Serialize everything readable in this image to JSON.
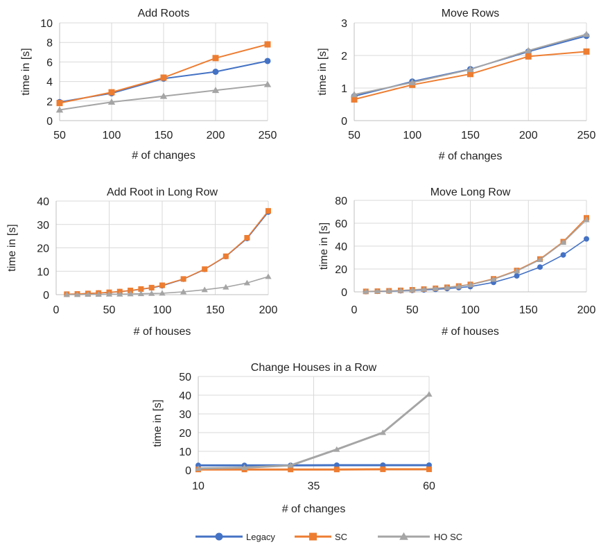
{
  "colors": {
    "legacy": "#4472C4",
    "sc": "#ED7D31",
    "ho_sc": "#A5A5A5",
    "grid": "#D9D9D9",
    "axis": "#BFBFBF"
  },
  "legend": {
    "placement": "bottom-center",
    "entries": [
      "Legacy",
      "SC",
      "HO SC"
    ]
  },
  "chart_data": [
    {
      "type": "line",
      "title": "Add Roots",
      "xlabel": "# of changes",
      "ylabel": "time in [s]",
      "xlim": [
        50,
        250
      ],
      "ylim": [
        0,
        10
      ],
      "xticks": [
        50,
        100,
        150,
        200,
        250
      ],
      "yticks": [
        0,
        2,
        4,
        6,
        8,
        10
      ],
      "grid": true,
      "series": [
        {
          "name": "Legacy",
          "x": [
            50,
            100,
            150,
            200,
            250
          ],
          "y": [
            1.9,
            2.8,
            4.3,
            5.0,
            6.1
          ]
        },
        {
          "name": "SC",
          "x": [
            50,
            100,
            150,
            200,
            250
          ],
          "y": [
            1.8,
            2.9,
            4.4,
            6.4,
            7.8
          ]
        },
        {
          "name": "HO SC",
          "x": [
            50,
            100,
            150,
            200,
            250
          ],
          "y": [
            1.1,
            1.9,
            2.5,
            3.1,
            3.7
          ]
        }
      ]
    },
    {
      "type": "line",
      "title": "Move Rows",
      "xlabel": "# of changes",
      "ylabel": "time in [s]",
      "xlim": [
        50,
        250
      ],
      "ylim": [
        0,
        3
      ],
      "xticks": [
        50,
        100,
        150,
        200,
        250
      ],
      "yticks": [
        0,
        1,
        2,
        3
      ],
      "grid": true,
      "series": [
        {
          "name": "Legacy",
          "x": [
            50,
            100,
            150,
            200,
            250
          ],
          "y": [
            0.75,
            1.2,
            1.58,
            2.12,
            2.6
          ]
        },
        {
          "name": "SC",
          "x": [
            50,
            100,
            150,
            200,
            250
          ],
          "y": [
            0.65,
            1.1,
            1.43,
            1.97,
            2.12
          ]
        },
        {
          "name": "HO SC",
          "x": [
            50,
            100,
            150,
            200,
            250
          ],
          "y": [
            0.8,
            1.17,
            1.57,
            2.15,
            2.65
          ]
        }
      ]
    },
    {
      "type": "line",
      "title": "Add Root in Long Row",
      "xlabel": "# of houses",
      "ylabel": "time in [s]",
      "xlim": [
        0,
        200
      ],
      "ylim": [
        0,
        40
      ],
      "xticks": [
        0,
        50,
        100,
        150,
        200
      ],
      "yticks": [
        0,
        10,
        20,
        30,
        40
      ],
      "grid": true,
      "series": [
        {
          "name": "Legacy",
          "x": [
            10,
            20,
            30,
            40,
            50,
            60,
            70,
            80,
            90,
            100,
            120,
            140,
            160,
            180,
            200
          ],
          "y": [
            0.2,
            0.3,
            0.5,
            0.7,
            0.9,
            1.3,
            1.7,
            2.3,
            2.9,
            3.8,
            6.6,
            10.8,
            16.3,
            24.0,
            35.3
          ]
        },
        {
          "name": "SC",
          "x": [
            10,
            20,
            30,
            40,
            50,
            60,
            70,
            80,
            90,
            100,
            120,
            140,
            160,
            180,
            200
          ],
          "y": [
            0.2,
            0.3,
            0.5,
            0.7,
            1.0,
            1.3,
            1.8,
            2.4,
            3.0,
            4.0,
            6.7,
            10.9,
            16.4,
            24.3,
            35.8
          ]
        },
        {
          "name": "HO SC",
          "x": [
            10,
            20,
            30,
            40,
            50,
            60,
            70,
            80,
            90,
            100,
            120,
            140,
            160,
            180,
            200
          ],
          "y": [
            0.0,
            0.0,
            0.1,
            0.1,
            0.2,
            0.2,
            0.3,
            0.4,
            0.5,
            0.6,
            1.2,
            2.1,
            3.2,
            5.0,
            7.7
          ]
        }
      ]
    },
    {
      "type": "line",
      "title": "Move Long Row",
      "xlabel": "# of houses",
      "ylabel": "time in [s]",
      "xlim": [
        0,
        200
      ],
      "ylim": [
        0,
        80
      ],
      "xticks": [
        0,
        50,
        100,
        150,
        200
      ],
      "yticks": [
        0,
        20,
        40,
        60,
        80
      ],
      "grid": true,
      "series": [
        {
          "name": "Legacy",
          "x": [
            10,
            20,
            30,
            40,
            50,
            60,
            70,
            80,
            90,
            100,
            120,
            140,
            160,
            180,
            200
          ],
          "y": [
            0.3,
            0.5,
            0.7,
            1.0,
            1.3,
            1.7,
            2.2,
            2.9,
            3.7,
            4.6,
            8.3,
            14.0,
            21.7,
            32.3,
            46.3
          ]
        },
        {
          "name": "SC",
          "x": [
            10,
            20,
            30,
            40,
            50,
            60,
            70,
            80,
            90,
            100,
            120,
            140,
            160,
            180,
            200
          ],
          "y": [
            0.4,
            0.6,
            0.9,
            1.3,
            1.8,
            2.4,
            3.1,
            4.0,
            5.1,
            6.5,
            11.4,
            18.7,
            28.7,
            43.9,
            64.7
          ]
        },
        {
          "name": "HO SC",
          "x": [
            10,
            20,
            30,
            40,
            50,
            60,
            70,
            80,
            90,
            100,
            120,
            140,
            160,
            180,
            200
          ],
          "y": [
            0.4,
            0.6,
            0.9,
            1.2,
            1.7,
            2.3,
            3.0,
            3.8,
            4.9,
            6.2,
            11.0,
            18.2,
            28.1,
            43.2,
            63.0
          ]
        }
      ]
    },
    {
      "type": "line",
      "title": "Change Houses in a Row",
      "xlabel": "# of changes",
      "ylabel": "time in [s]",
      "xlim": [
        10,
        60
      ],
      "ylim": [
        0,
        50
      ],
      "xticks": [
        10,
        35,
        60
      ],
      "yticks": [
        0,
        10,
        20,
        30,
        40,
        50
      ],
      "grid": true,
      "series": [
        {
          "name": "Legacy",
          "x": [
            10,
            20,
            30,
            40,
            50,
            60
          ],
          "y": [
            2.5,
            2.5,
            2.5,
            2.6,
            2.6,
            2.6
          ]
        },
        {
          "name": "SC",
          "x": [
            10,
            20,
            30,
            40,
            50,
            60
          ],
          "y": [
            0.3,
            0.3,
            0.3,
            0.3,
            0.4,
            0.4
          ]
        },
        {
          "name": "HO SC",
          "x": [
            10,
            20,
            30,
            40,
            50,
            60
          ],
          "y": [
            0.8,
            1.3,
            2.5,
            11.0,
            20.0,
            40.5
          ]
        }
      ]
    }
  ]
}
